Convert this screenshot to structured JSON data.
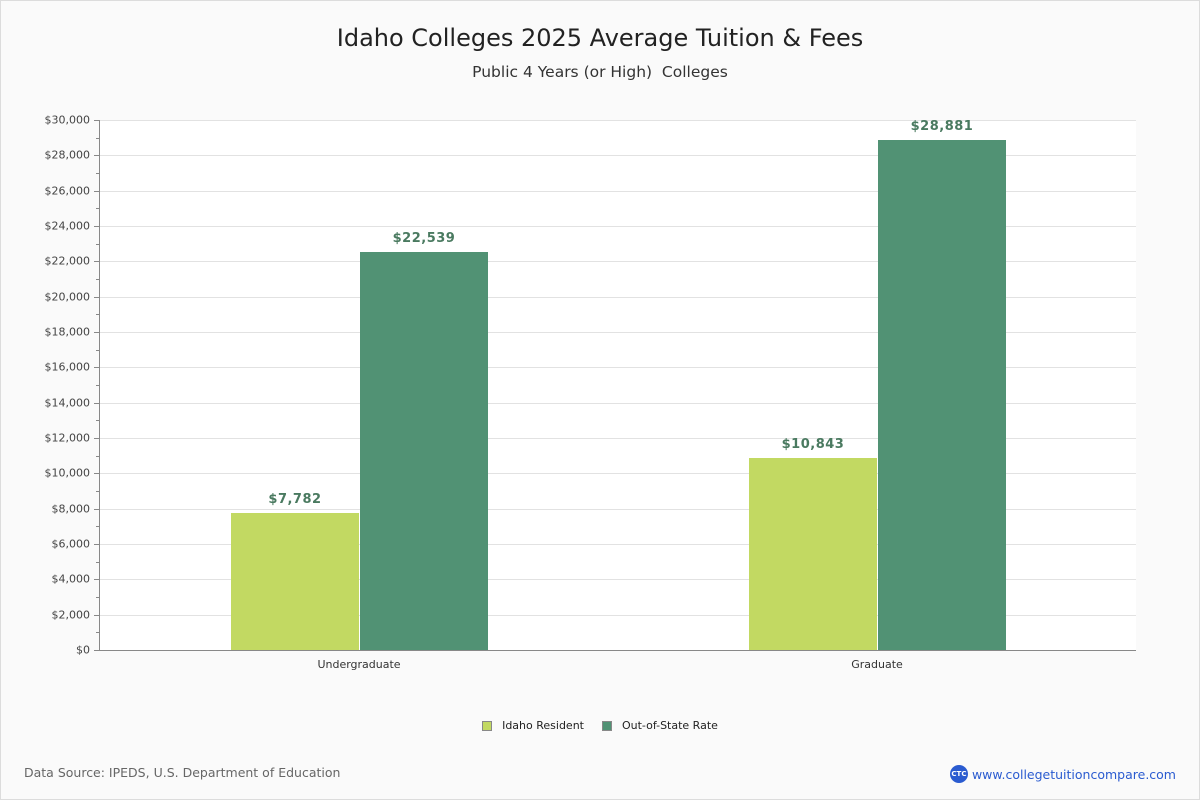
{
  "header": {
    "title": "Idaho Colleges 2025 Average Tuition & Fees",
    "subtitle": "Public 4 Years (or High)  Colleges"
  },
  "colors": {
    "resident": "#c2d962",
    "out_of_state": "#519274",
    "bar_label": "#4a7a60",
    "brand": "#2a5bd0"
  },
  "legend": {
    "items": [
      {
        "label": "Idaho Resident",
        "color": "#c2d962"
      },
      {
        "label": "Out-of-State Rate",
        "color": "#519274"
      }
    ]
  },
  "bar_labels": {
    "undergrad_resident": "$7,782",
    "undergrad_out": "$22,539",
    "grad_resident": "$10,843",
    "grad_out": "$28,881"
  },
  "x_labels": [
    "Undergraduate",
    "Graduate"
  ],
  "y_ticks": [
    "$0",
    "$2,000",
    "$4,000",
    "$6,000",
    "$8,000",
    "$10,000",
    "$12,000",
    "$14,000",
    "$16,000",
    "$18,000",
    "$20,000",
    "$22,000",
    "$24,000",
    "$26,000",
    "$28,000",
    "$30,000"
  ],
  "footer": {
    "source": "Data Source: IPEDS, U.S. Department of Education",
    "brand_logo": "CTC",
    "brand_url": "www.collegetuitioncompare.com"
  },
  "chart_data": {
    "type": "bar",
    "title": "Idaho Colleges 2025 Average Tuition & Fees",
    "subtitle": "Public 4 Years (or High)  Colleges",
    "categories": [
      "Undergraduate",
      "Graduate"
    ],
    "series": [
      {
        "name": "Idaho Resident",
        "values": [
          7782,
          10843
        ],
        "color": "#c2d962"
      },
      {
        "name": "Out-of-State Rate",
        "values": [
          22539,
          28881
        ],
        "color": "#519274"
      }
    ],
    "xlabel": "",
    "ylabel": "",
    "ylim": [
      0,
      30000
    ],
    "y_tick_step": 2000,
    "y_tick_format": "$#,###",
    "grid": true,
    "legend_position": "bottom"
  }
}
